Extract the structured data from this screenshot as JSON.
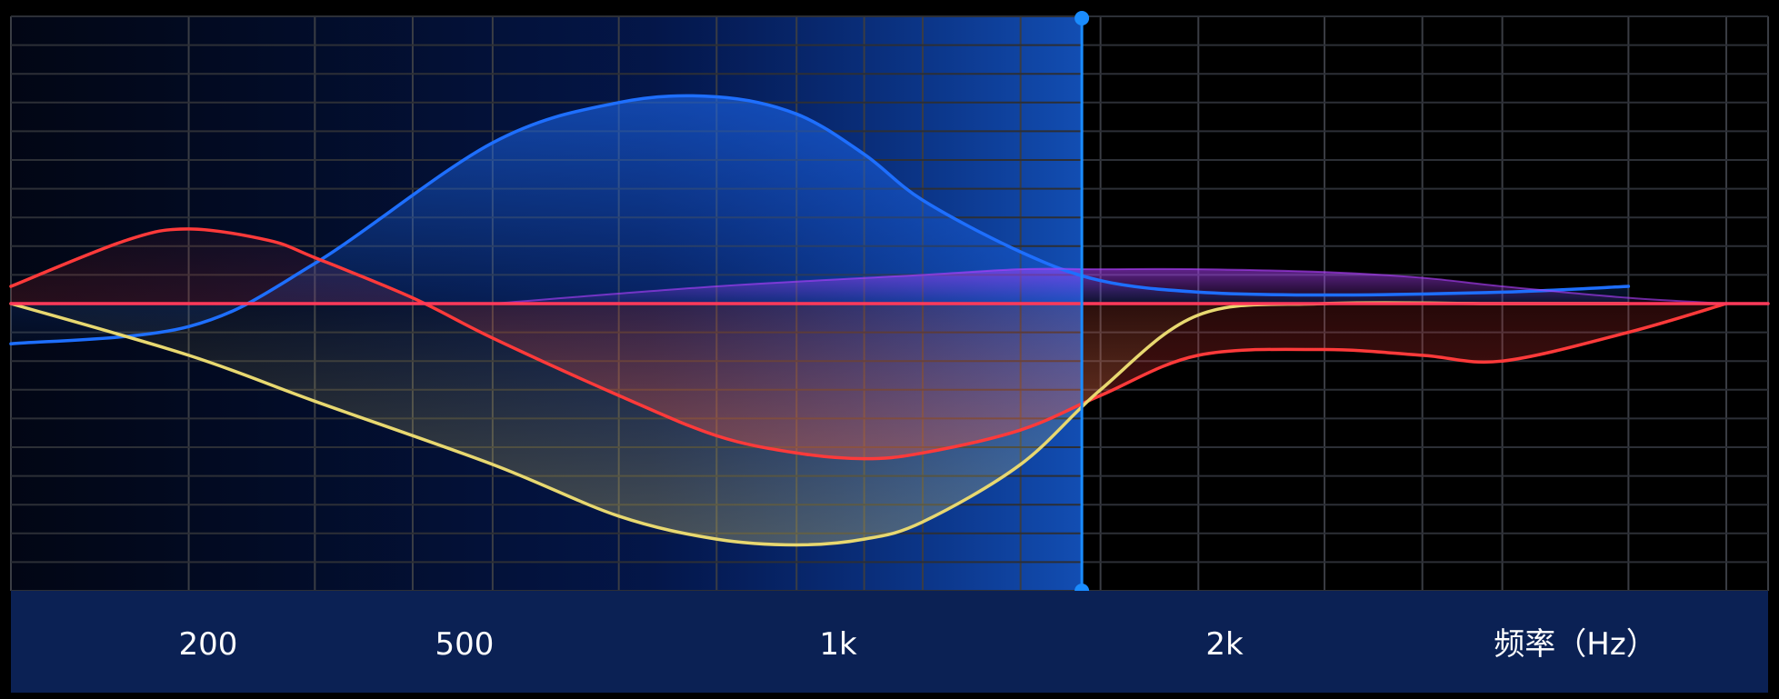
{
  "chart_data": {
    "type": "line",
    "title": "",
    "xlabel": "频率（Hz）",
    "ylabel": "",
    "x_scale": "log",
    "xlim": [
      100,
      5500
    ],
    "ylim": [
      -5,
      5
    ],
    "grid": true,
    "legend": "none",
    "x_ticks": [
      {
        "value": 200,
        "label": "200"
      },
      {
        "value": 500,
        "label": "500"
      },
      {
        "value": 1000,
        "label": "1k"
      },
      {
        "value": 2000,
        "label": "2k"
      }
    ],
    "cursor": {
      "x": 1150
    },
    "series": [
      {
        "color": "#1e6fff",
        "x": [
          100,
          150,
          200,
          300,
          400,
          500,
          600,
          700,
          800,
          1000,
          1200,
          1500,
          2000,
          3000,
          4000
        ],
        "y": [
          -0.7,
          -0.4,
          0.7,
          2.8,
          3.5,
          3.6,
          3.3,
          2.6,
          1.8,
          0.9,
          0.4,
          0.2,
          0.15,
          0.2,
          0.3
        ]
      },
      {
        "color": "#ff3a3a",
        "x": [
          100,
          130,
          150,
          180,
          200,
          250,
          300,
          400,
          500,
          600,
          700,
          800,
          1000,
          1200,
          1500,
          2000,
          2500,
          3000,
          4000,
          5000
        ],
        "y": [
          0.3,
          1.1,
          1.3,
          1.1,
          0.8,
          0.1,
          -0.6,
          -1.6,
          -2.3,
          -2.6,
          -2.7,
          -2.6,
          -2.2,
          -1.6,
          -0.9,
          -0.8,
          -0.9,
          -1.0,
          -0.5,
          0.0
        ]
      },
      {
        "color": "#e8d870",
        "x": [
          100,
          150,
          200,
          300,
          400,
          500,
          600,
          700,
          800,
          1000,
          1200,
          1500,
          2000,
          3000,
          4000
        ],
        "y": [
          0.0,
          -0.9,
          -1.7,
          -2.8,
          -3.7,
          -4.1,
          -4.2,
          -4.1,
          -3.8,
          -2.8,
          -1.5,
          -0.2,
          0.0,
          0.0,
          0.0
        ]
      },
      {
        "color": "#b040ff",
        "x": [
          300,
          500,
          800,
          1000,
          1200,
          1500,
          2000,
          2500,
          3000,
          4000,
          5000
        ],
        "y": [
          0.0,
          0.3,
          0.5,
          0.6,
          0.6,
          0.6,
          0.55,
          0.45,
          0.3,
          0.1,
          0.0
        ]
      },
      {
        "color": "#ff3a5a",
        "x": [
          100,
          5500
        ],
        "y": [
          0.0,
          0.0
        ]
      }
    ]
  }
}
